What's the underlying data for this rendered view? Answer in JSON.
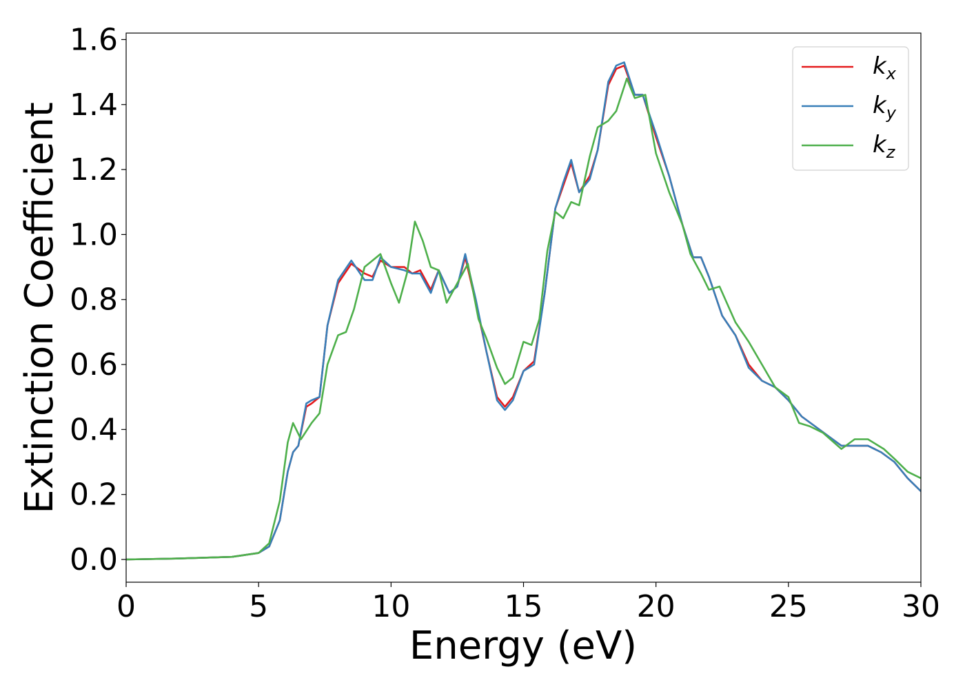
{
  "chart_data": {
    "type": "line",
    "title": "",
    "xlabel": "Energy (eV)",
    "ylabel": "Extinction Coefficient",
    "xlim": [
      0,
      30
    ],
    "ylim": [
      -0.07,
      1.62
    ],
    "xticks": [
      0,
      5,
      10,
      15,
      20,
      25,
      30
    ],
    "xtick_labels": [
      "0",
      "5",
      "10",
      "15",
      "20",
      "25",
      "30"
    ],
    "yticks": [
      0.0,
      0.2,
      0.4,
      0.6,
      0.8,
      1.0,
      1.2,
      1.4,
      1.6
    ],
    "ytick_labels": [
      "0.0",
      "0.2",
      "0.4",
      "0.6",
      "0.8",
      "1.0",
      "1.2",
      "1.4",
      "1.6"
    ],
    "grid": false,
    "legend_position": "top-right",
    "series": [
      {
        "name": "k_x",
        "legend_base": "k",
        "legend_sub": "x",
        "color": "#e41a1c",
        "points": [
          [
            0,
            0
          ],
          [
            2,
            0.003
          ],
          [
            4,
            0.008
          ],
          [
            5,
            0.02
          ],
          [
            5.4,
            0.04
          ],
          [
            5.8,
            0.12
          ],
          [
            6.1,
            0.27
          ],
          [
            6.3,
            0.33
          ],
          [
            6.5,
            0.35
          ],
          [
            6.8,
            0.47
          ],
          [
            7,
            0.48
          ],
          [
            7.3,
            0.5
          ],
          [
            7.6,
            0.72
          ],
          [
            8,
            0.85
          ],
          [
            8.5,
            0.91
          ],
          [
            9,
            0.88
          ],
          [
            9.3,
            0.87
          ],
          [
            9.6,
            0.92
          ],
          [
            10,
            0.9
          ],
          [
            10.5,
            0.9
          ],
          [
            10.8,
            0.88
          ],
          [
            11.1,
            0.89
          ],
          [
            11.5,
            0.83
          ],
          [
            11.8,
            0.89
          ],
          [
            12.2,
            0.82
          ],
          [
            12.5,
            0.84
          ],
          [
            12.8,
            0.93
          ],
          [
            13.2,
            0.79
          ],
          [
            13.6,
            0.64
          ],
          [
            14,
            0.5
          ],
          [
            14.3,
            0.47
          ],
          [
            14.6,
            0.5
          ],
          [
            15,
            0.58
          ],
          [
            15.4,
            0.61
          ],
          [
            15.8,
            0.82
          ],
          [
            16.2,
            1.08
          ],
          [
            16.5,
            1.15
          ],
          [
            16.8,
            1.22
          ],
          [
            17.1,
            1.13
          ],
          [
            17.5,
            1.18
          ],
          [
            17.8,
            1.26
          ],
          [
            18.2,
            1.46
          ],
          [
            18.5,
            1.51
          ],
          [
            18.8,
            1.52
          ],
          [
            19.2,
            1.43
          ],
          [
            19.5,
            1.43
          ],
          [
            20,
            1.3
          ],
          [
            20.5,
            1.18
          ],
          [
            21,
            1.03
          ],
          [
            21.4,
            0.93
          ],
          [
            21.7,
            0.93
          ],
          [
            22,
            0.87
          ],
          [
            22.5,
            0.75
          ],
          [
            23,
            0.69
          ],
          [
            23.5,
            0.6
          ],
          [
            24,
            0.55
          ],
          [
            24.5,
            0.53
          ],
          [
            25,
            0.49
          ],
          [
            25.5,
            0.44
          ],
          [
            26,
            0.41
          ],
          [
            26.5,
            0.38
          ],
          [
            27,
            0.35
          ],
          [
            27.5,
            0.35
          ],
          [
            28,
            0.35
          ],
          [
            28.5,
            0.33
          ],
          [
            29,
            0.3
          ],
          [
            29.5,
            0.25
          ],
          [
            30,
            0.21
          ]
        ]
      },
      {
        "name": "k_y",
        "legend_base": "k",
        "legend_sub": "y",
        "color": "#377eb8",
        "points": [
          [
            0,
            0
          ],
          [
            2,
            0.003
          ],
          [
            4,
            0.008
          ],
          [
            5,
            0.02
          ],
          [
            5.4,
            0.04
          ],
          [
            5.8,
            0.12
          ],
          [
            6.1,
            0.27
          ],
          [
            6.3,
            0.33
          ],
          [
            6.5,
            0.35
          ],
          [
            6.8,
            0.48
          ],
          [
            7,
            0.49
          ],
          [
            7.3,
            0.5
          ],
          [
            7.6,
            0.72
          ],
          [
            8,
            0.86
          ],
          [
            8.5,
            0.92
          ],
          [
            9,
            0.86
          ],
          [
            9.3,
            0.86
          ],
          [
            9.6,
            0.93
          ],
          [
            10,
            0.9
          ],
          [
            10.5,
            0.89
          ],
          [
            10.8,
            0.88
          ],
          [
            11.1,
            0.88
          ],
          [
            11.5,
            0.82
          ],
          [
            11.8,
            0.89
          ],
          [
            12.2,
            0.82
          ],
          [
            12.5,
            0.84
          ],
          [
            12.8,
            0.94
          ],
          [
            13.2,
            0.8
          ],
          [
            13.6,
            0.64
          ],
          [
            14,
            0.49
          ],
          [
            14.3,
            0.46
          ],
          [
            14.6,
            0.49
          ],
          [
            15,
            0.58
          ],
          [
            15.4,
            0.6
          ],
          [
            15.8,
            0.82
          ],
          [
            16.2,
            1.08
          ],
          [
            16.5,
            1.16
          ],
          [
            16.8,
            1.23
          ],
          [
            17.1,
            1.13
          ],
          [
            17.5,
            1.17
          ],
          [
            17.8,
            1.26
          ],
          [
            18.2,
            1.47
          ],
          [
            18.5,
            1.52
          ],
          [
            18.8,
            1.53
          ],
          [
            19.2,
            1.43
          ],
          [
            19.5,
            1.43
          ],
          [
            20,
            1.31
          ],
          [
            20.5,
            1.18
          ],
          [
            21,
            1.03
          ],
          [
            21.4,
            0.93
          ],
          [
            21.7,
            0.93
          ],
          [
            22,
            0.87
          ],
          [
            22.5,
            0.75
          ],
          [
            23,
            0.69
          ],
          [
            23.5,
            0.59
          ],
          [
            24,
            0.55
          ],
          [
            24.5,
            0.53
          ],
          [
            25,
            0.49
          ],
          [
            25.5,
            0.44
          ],
          [
            26,
            0.41
          ],
          [
            26.5,
            0.38
          ],
          [
            27,
            0.35
          ],
          [
            27.5,
            0.35
          ],
          [
            28,
            0.35
          ],
          [
            28.5,
            0.33
          ],
          [
            29,
            0.3
          ],
          [
            29.5,
            0.25
          ],
          [
            30,
            0.21
          ]
        ]
      },
      {
        "name": "k_z",
        "legend_base": "k",
        "legend_sub": "z",
        "color": "#4daf4a",
        "points": [
          [
            0,
            0
          ],
          [
            2,
            0.003
          ],
          [
            4,
            0.008
          ],
          [
            5,
            0.02
          ],
          [
            5.4,
            0.05
          ],
          [
            5.8,
            0.18
          ],
          [
            6.1,
            0.36
          ],
          [
            6.3,
            0.42
          ],
          [
            6.6,
            0.37
          ],
          [
            7,
            0.42
          ],
          [
            7.3,
            0.45
          ],
          [
            7.6,
            0.6
          ],
          [
            8,
            0.69
          ],
          [
            8.3,
            0.7
          ],
          [
            8.6,
            0.77
          ],
          [
            9,
            0.9
          ],
          [
            9.6,
            0.94
          ],
          [
            10,
            0.85
          ],
          [
            10.3,
            0.79
          ],
          [
            10.6,
            0.88
          ],
          [
            10.9,
            1.04
          ],
          [
            11.2,
            0.98
          ],
          [
            11.5,
            0.9
          ],
          [
            11.8,
            0.89
          ],
          [
            12.1,
            0.79
          ],
          [
            12.5,
            0.85
          ],
          [
            12.9,
            0.91
          ],
          [
            13.3,
            0.74
          ],
          [
            13.6,
            0.68
          ],
          [
            14,
            0.59
          ],
          [
            14.3,
            0.54
          ],
          [
            14.6,
            0.56
          ],
          [
            15,
            0.67
          ],
          [
            15.3,
            0.66
          ],
          [
            15.6,
            0.74
          ],
          [
            15.9,
            0.95
          ],
          [
            16.2,
            1.07
          ],
          [
            16.5,
            1.05
          ],
          [
            16.8,
            1.1
          ],
          [
            17.1,
            1.09
          ],
          [
            17.5,
            1.24
          ],
          [
            17.8,
            1.33
          ],
          [
            18.2,
            1.35
          ],
          [
            18.5,
            1.38
          ],
          [
            18.9,
            1.48
          ],
          [
            19.2,
            1.42
          ],
          [
            19.6,
            1.43
          ],
          [
            20,
            1.25
          ],
          [
            20.5,
            1.13
          ],
          [
            21,
            1.03
          ],
          [
            21.3,
            0.94
          ],
          [
            21.7,
            0.88
          ],
          [
            22,
            0.83
          ],
          [
            22.4,
            0.84
          ],
          [
            23,
            0.73
          ],
          [
            23.5,
            0.67
          ],
          [
            24,
            0.6
          ],
          [
            24.5,
            0.53
          ],
          [
            25,
            0.5
          ],
          [
            25.4,
            0.42
          ],
          [
            25.8,
            0.41
          ],
          [
            26.3,
            0.39
          ],
          [
            27,
            0.34
          ],
          [
            27.5,
            0.37
          ],
          [
            28,
            0.37
          ],
          [
            28.6,
            0.34
          ],
          [
            29,
            0.31
          ],
          [
            29.5,
            0.27
          ],
          [
            30,
            0.25
          ]
        ]
      }
    ]
  }
}
